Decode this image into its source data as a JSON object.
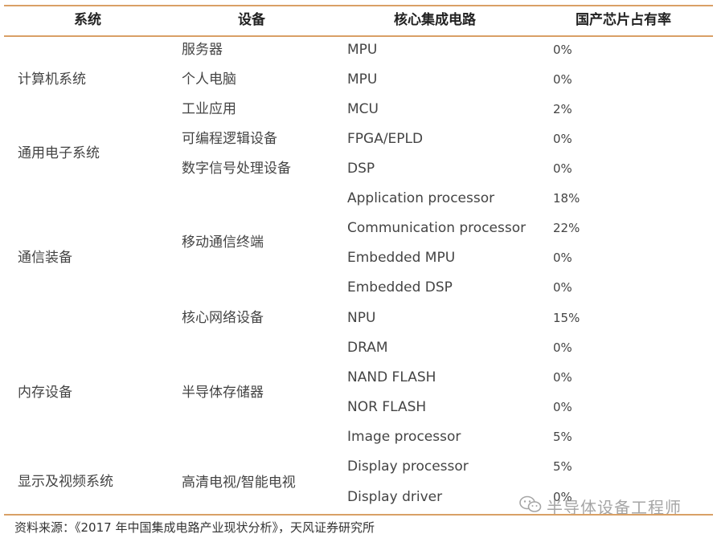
{
  "table": {
    "headers": {
      "system": "系统",
      "device": "设备",
      "ic": "核心集成电路",
      "share": "国产芯片占有率"
    },
    "systems": [
      "计算机系统",
      "通用电子系统",
      "通信装备",
      "内存设备",
      "显示及视频系统"
    ],
    "devices": [
      "服务器",
      "个人电脑",
      "工业应用",
      "可编程逻辑设备",
      "数字信号处理设备",
      "移动通信终端",
      "核心网络设备",
      "半导体存储器",
      "高清电视/智能电视"
    ],
    "rows": [
      {
        "ic": "MPU",
        "share": "0%"
      },
      {
        "ic": "MPU",
        "share": "0%"
      },
      {
        "ic": "MCU",
        "share": "2%"
      },
      {
        "ic": "FPGA/EPLD",
        "share": "0%"
      },
      {
        "ic": "DSP",
        "share": "0%"
      },
      {
        "ic": "Application processor",
        "share": "18%"
      },
      {
        "ic": "Communication processor",
        "share": "22%"
      },
      {
        "ic": "Embedded MPU",
        "share": "0%"
      },
      {
        "ic": "Embedded DSP",
        "share": "0%"
      },
      {
        "ic": "NPU",
        "share": "15%"
      },
      {
        "ic": "DRAM",
        "share": "0%"
      },
      {
        "ic": "NAND FLASH",
        "share": "0%"
      },
      {
        "ic": "NOR FLASH",
        "share": "0%"
      },
      {
        "ic": "Image processor",
        "share": "5%"
      },
      {
        "ic": "Display processor",
        "share": "5%"
      },
      {
        "ic": "Display driver",
        "share": "0%"
      }
    ]
  },
  "source": "资料来源：《2017 年中国集成电路产业现状分析》，天风证券研究所",
  "watermark": {
    "text": "半导体设备工程师",
    "icon": "wechat-icon"
  }
}
